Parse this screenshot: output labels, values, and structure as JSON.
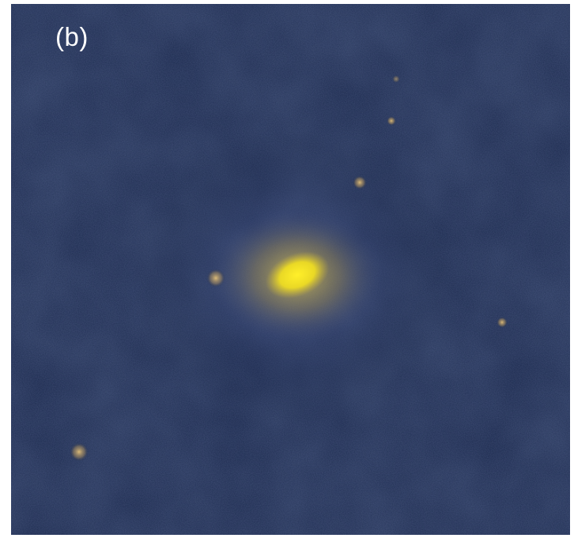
{
  "panel": {
    "label": "(b)"
  },
  "image": {
    "subject": "galaxy-image",
    "colors": {
      "background": "#17243f",
      "halo": "#3b4a7a",
      "core": "#f2e020",
      "core_glow": "#c8b23a",
      "source": "#c9a56a"
    }
  }
}
